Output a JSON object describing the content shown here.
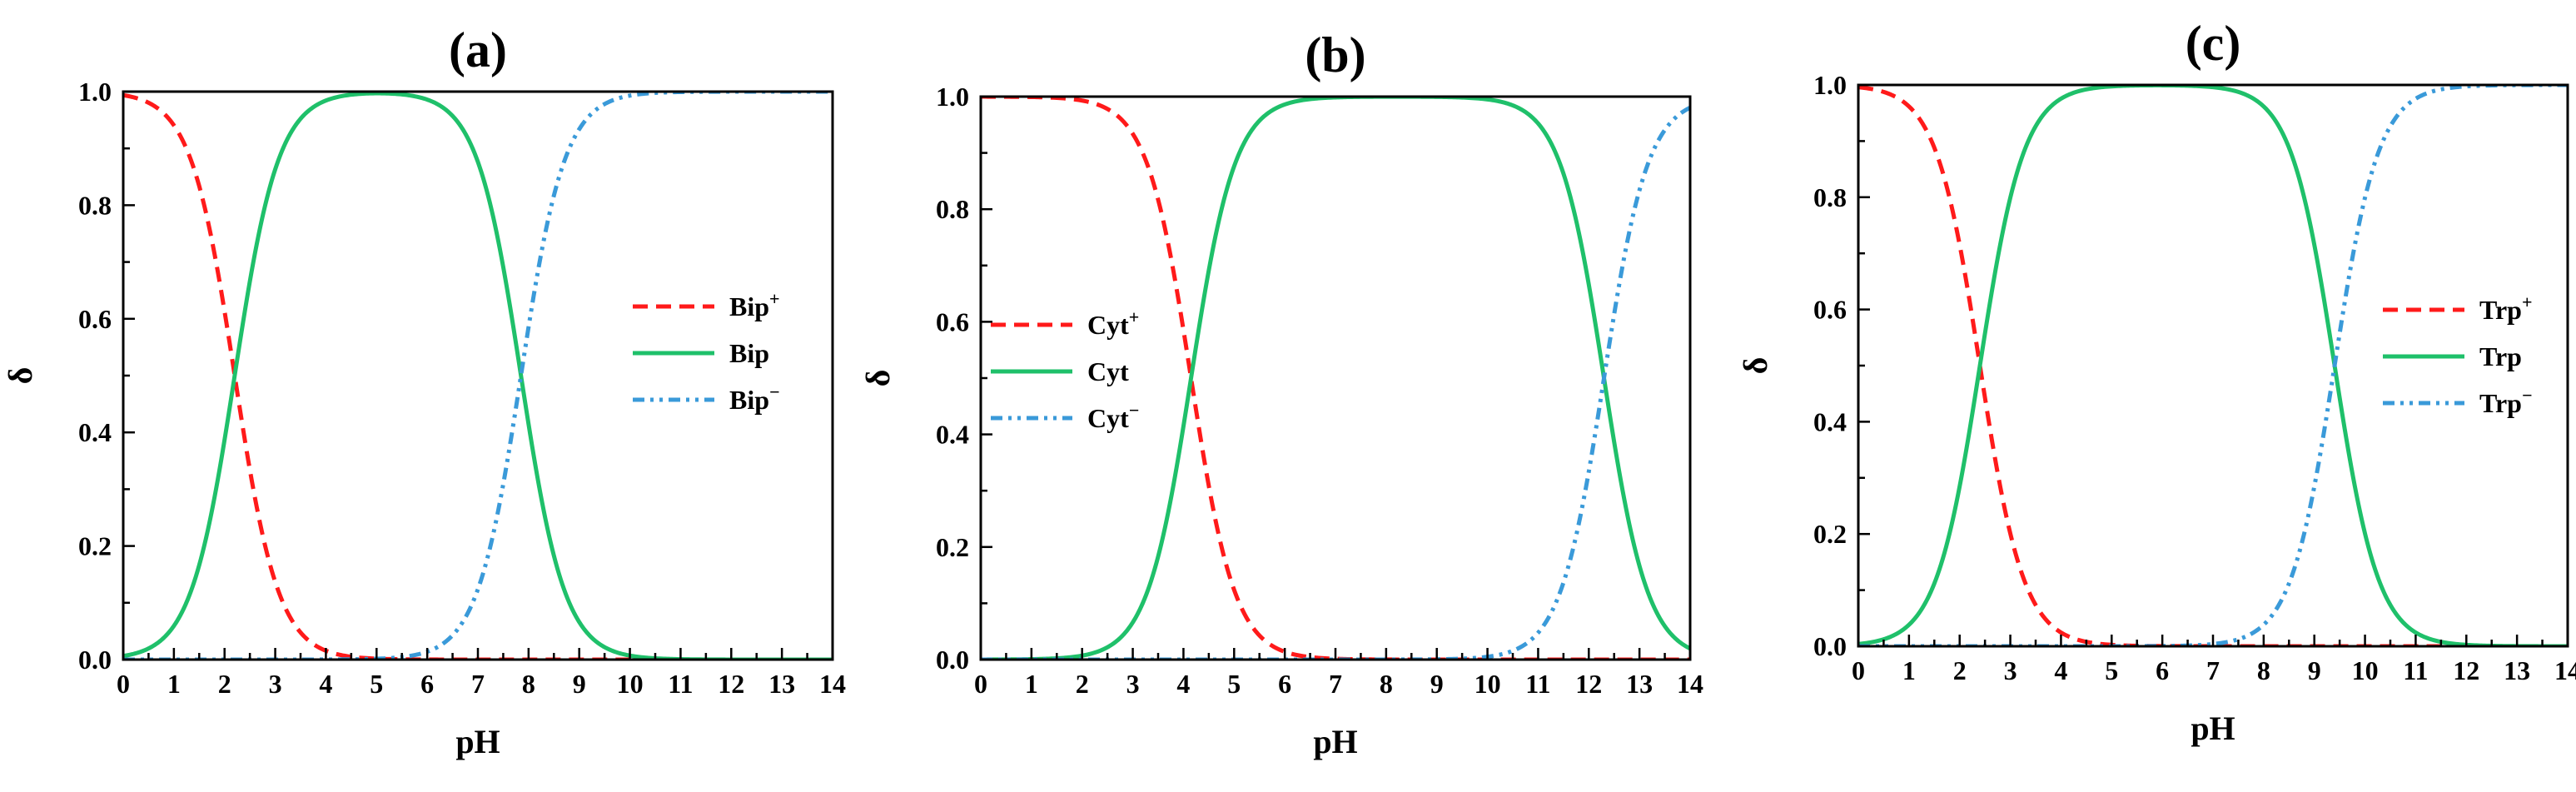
{
  "chart_data": [
    {
      "type": "line",
      "title": "(a)",
      "xlabel": "pH",
      "ylabel": "δ",
      "xlim": [
        0,
        14
      ],
      "ylim": [
        0,
        1
      ],
      "xticks": [
        "0",
        "1",
        "2",
        "3",
        "4",
        "5",
        "6",
        "7",
        "8",
        "9",
        "10",
        "11",
        "12",
        "13",
        "14"
      ],
      "yticks": [
        "0.0",
        "0.2",
        "0.4",
        "0.6",
        "0.8",
        "1.0"
      ],
      "legend_position": "right-middle",
      "legend": [
        {
          "label": "Bip",
          "sup": "+"
        },
        {
          "label": "Bip",
          "sup": ""
        },
        {
          "label": "Bip",
          "sup": "−"
        }
      ],
      "pKa1": 2.2,
      "pKa2": 7.85,
      "x": [
        0,
        0.5,
        1,
        1.5,
        2,
        2.5,
        3,
        3.5,
        4,
        4.5,
        5,
        5.5,
        6,
        6.5,
        7,
        7.5,
        8,
        8.5,
        9,
        9.5,
        10,
        10.5,
        11,
        11.5,
        12,
        12.5,
        13,
        13.5,
        14
      ],
      "series": [
        {
          "name": "Bip+",
          "color": "#ff1a1a",
          "dash": "dashed",
          "values": [
            0.99,
            0.98,
            0.94,
            0.83,
            0.61,
            0.33,
            0.14,
            0.05,
            0.02,
            0.01,
            0,
            0,
            0,
            0,
            0,
            0,
            0,
            0,
            0,
            0,
            0,
            0,
            0,
            0,
            0,
            0,
            0,
            0,
            0
          ]
        },
        {
          "name": "Bip",
          "color": "#1fc06a",
          "dash": "solid",
          "values": [
            0.01,
            0.02,
            0.06,
            0.17,
            0.39,
            0.67,
            0.86,
            0.95,
            0.98,
            0.99,
            0.99,
            0.99,
            0.98,
            0.95,
            0.87,
            0.69,
            0.41,
            0.18,
            0.07,
            0.02,
            0.01,
            0,
            0,
            0,
            0,
            0,
            0,
            0,
            0
          ]
        },
        {
          "name": "Bip-",
          "color": "#3a9ad9",
          "dash": "dashdotdot",
          "values": [
            0,
            0,
            0,
            0,
            0,
            0,
            0,
            0,
            0,
            0,
            0,
            0.01,
            0.02,
            0.05,
            0.13,
            0.31,
            0.59,
            0.82,
            0.93,
            0.98,
            0.99,
            1,
            1,
            1,
            1,
            1,
            1,
            1,
            1
          ]
        }
      ]
    },
    {
      "type": "line",
      "title": "(b)",
      "xlabel": "pH",
      "ylabel": "δ",
      "xlim": [
        0,
        14
      ],
      "ylim": [
        0,
        1
      ],
      "xticks": [
        "0",
        "1",
        "2",
        "3",
        "4",
        "5",
        "6",
        "7",
        "8",
        "9",
        "10",
        "11",
        "12",
        "13",
        "14"
      ],
      "yticks": [
        "0.0",
        "0.2",
        "0.4",
        "0.6",
        "0.8",
        "1.0"
      ],
      "legend_position": "left-middle",
      "legend": [
        {
          "label": "Cyt",
          "sup": "+"
        },
        {
          "label": "Cyt",
          "sup": ""
        },
        {
          "label": "Cyt",
          "sup": "−"
        }
      ],
      "pKa1": 4.15,
      "pKa2": 12.3,
      "x": [
        0,
        0.5,
        1,
        1.5,
        2,
        2.5,
        3,
        3.5,
        4,
        4.5,
        5,
        5.5,
        6,
        6.5,
        7,
        7.5,
        8,
        8.5,
        9,
        9.5,
        10,
        10.5,
        11,
        11.5,
        12,
        12.5,
        13,
        13.5,
        14
      ],
      "series": [
        {
          "name": "Cyt+",
          "color": "#ff1a1a",
          "dash": "dashed",
          "values": [
            1,
            1,
            1,
            1,
            0.99,
            0.98,
            0.93,
            0.81,
            0.58,
            0.31,
            0.12,
            0.04,
            0.01,
            0,
            0,
            0,
            0,
            0,
            0,
            0,
            0,
            0,
            0,
            0,
            0,
            0,
            0,
            0,
            0
          ]
        },
        {
          "name": "Cyt",
          "color": "#1fc06a",
          "dash": "solid",
          "values": [
            0,
            0,
            0,
            0,
            0.01,
            0.02,
            0.07,
            0.19,
            0.42,
            0.69,
            0.88,
            0.96,
            0.99,
            1,
            1,
            1,
            1,
            1,
            1,
            1,
            0.99,
            0.98,
            0.95,
            0.83,
            0.67,
            0.39,
            0.17,
            0.06,
            0.02
          ]
        },
        {
          "name": "Cyt-",
          "color": "#3a9ad9",
          "dash": "dashdotdot",
          "values": [
            0,
            0,
            0,
            0,
            0,
            0,
            0,
            0,
            0,
            0,
            0,
            0,
            0,
            0,
            0,
            0,
            0,
            0,
            0,
            0,
            0.01,
            0.02,
            0.05,
            0.17,
            0.33,
            0.61,
            0.83,
            0.94,
            0.98
          ]
        }
      ]
    },
    {
      "type": "line",
      "title": "(c)",
      "xlabel": "pH",
      "ylabel": "δ",
      "xlim": [
        0,
        14
      ],
      "ylim": [
        0,
        1
      ],
      "xticks": [
        "0",
        "1",
        "2",
        "3",
        "4",
        "5",
        "6",
        "7",
        "8",
        "9",
        "10",
        "11",
        "12",
        "13",
        "14"
      ],
      "yticks": [
        "0.0",
        "0.2",
        "0.4",
        "0.6",
        "0.8",
        "1.0"
      ],
      "legend_position": "right-middle",
      "legend": [
        {
          "label": "Trp",
          "sup": "+"
        },
        {
          "label": "Trp",
          "sup": ""
        },
        {
          "label": "Trp",
          "sup": "−"
        }
      ],
      "pKa1": 2.4,
      "pKa2": 9.4,
      "x": [
        0,
        0.5,
        1,
        1.5,
        2,
        2.5,
        3,
        3.5,
        4,
        4.5,
        5,
        5.5,
        6,
        6.5,
        7,
        7.5,
        8,
        8.5,
        9,
        9.5,
        10,
        10.5,
        11,
        11.5,
        12,
        12.5,
        13,
        13.5,
        14
      ],
      "series": [
        {
          "name": "Trp+",
          "color": "#ff1a1a",
          "dash": "dashed",
          "values": [
            1,
            0.99,
            0.96,
            0.89,
            0.72,
            0.44,
            0.2,
            0.07,
            0.02,
            0.01,
            0,
            0,
            0,
            0,
            0,
            0,
            0,
            0,
            0,
            0,
            0,
            0,
            0,
            0,
            0,
            0,
            0,
            0,
            0
          ]
        },
        {
          "name": "Trp",
          "color": "#1fc06a",
          "dash": "solid",
          "values": [
            0,
            0.01,
            0.04,
            0.11,
            0.28,
            0.56,
            0.8,
            0.93,
            0.98,
            0.99,
            1,
            1,
            1,
            1,
            0.99,
            0.98,
            0.96,
            0.88,
            0.72,
            0.44,
            0.2,
            0.07,
            0.02,
            0.01,
            0,
            0,
            0,
            0,
            0
          ]
        },
        {
          "name": "Trp-",
          "color": "#3a9ad9",
          "dash": "dashdotdot",
          "values": [
            0,
            0,
            0,
            0,
            0,
            0,
            0,
            0,
            0,
            0,
            0,
            0,
            0,
            0,
            0.01,
            0.02,
            0.04,
            0.12,
            0.28,
            0.56,
            0.8,
            0.93,
            0.98,
            0.99,
            1,
            1,
            1,
            1,
            1
          ]
        }
      ]
    }
  ]
}
